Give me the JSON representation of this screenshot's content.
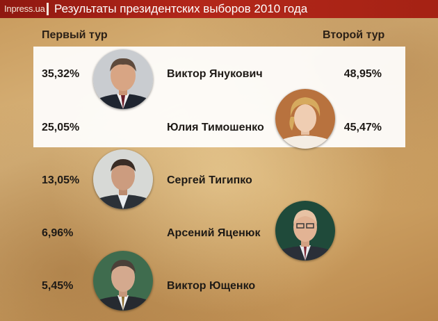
{
  "header": {
    "brand": "Inpress.ua",
    "title": "Результаты президентских выборов 2010 года"
  },
  "columns": {
    "first_round": "Первый тур",
    "second_round": "Второй тур"
  },
  "chart_data": {
    "type": "table",
    "title": "Результаты президентских выборов 2010 года",
    "columns": [
      "Первый тур",
      "Второй тур"
    ],
    "rows": [
      {
        "name": "Виктор Янукович",
        "first_round": "35,32%",
        "second_round": "48,95%",
        "first_value": 35.32,
        "second_value": 48.95
      },
      {
        "name": "Юлия Тимошенко",
        "first_round": "25,05%",
        "second_round": "45,47%",
        "first_value": 25.05,
        "second_value": 45.47
      },
      {
        "name": "Сергей Тигипко",
        "first_round": "13,05%",
        "second_round": "",
        "first_value": 13.05,
        "second_value": null
      },
      {
        "name": "Арсений Яценюк",
        "first_round": "6,96%",
        "second_round": "",
        "first_value": 6.96,
        "second_value": null
      },
      {
        "name": "Виктор Ющенко",
        "first_round": "5,45%",
        "second_round": "",
        "first_value": 5.45,
        "second_value": null
      }
    ]
  },
  "colors": {
    "header_red": "#b3271a",
    "panel_white": "#ffffff",
    "parchment": "#d4ab6f"
  }
}
